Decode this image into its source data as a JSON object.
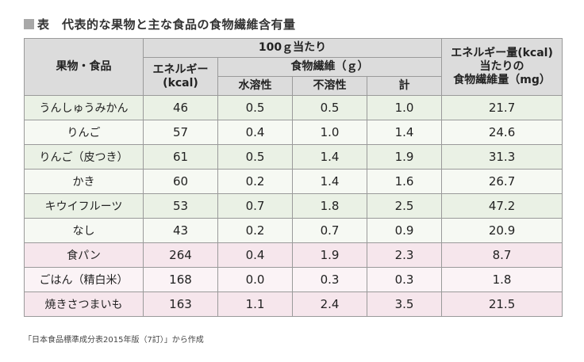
{
  "title": "■表　代表的な果物と主な食品の食物繊維含有量",
  "title_text": "表　代表的な果物と主な食品の食物繊維含有量",
  "headers": {
    "item": "果物・食品",
    "per100g": "100ｇ当たり",
    "energy_line1": "エネルギー",
    "energy_line2": "(kcal)",
    "fiber_group": "食物繊維（ｇ）",
    "soluble": "水溶性",
    "insoluble": "不溶性",
    "total": "計",
    "per_energy_line1": "エネルギー量(kcal)",
    "per_energy_line2": "当たりの",
    "per_energy_line3": "食物繊維量（mg）"
  },
  "rows": [
    {
      "name": "うんしゅうみかん",
      "energy": "46",
      "soluble": "0.5",
      "insoluble": "0.5",
      "total": "1.0",
      "per_energy": "21.7",
      "group": "fruit"
    },
    {
      "name": "りんご",
      "energy": "57",
      "soluble": "0.4",
      "insoluble": "1.0",
      "total": "1.4",
      "per_energy": "24.6",
      "group": "fruit"
    },
    {
      "name": "りんご（皮つき）",
      "energy": "61",
      "soluble": "0.5",
      "insoluble": "1.4",
      "total": "1.9",
      "per_energy": "31.3",
      "group": "fruit"
    },
    {
      "name": "かき",
      "energy": "60",
      "soluble": "0.2",
      "insoluble": "1.4",
      "total": "1.6",
      "per_energy": "26.7",
      "group": "fruit"
    },
    {
      "name": "キウイフルーツ",
      "energy": "53",
      "soluble": "0.7",
      "insoluble": "1.8",
      "total": "2.5",
      "per_energy": "47.2",
      "group": "fruit"
    },
    {
      "name": "なし",
      "energy": "43",
      "soluble": "0.2",
      "insoluble": "0.7",
      "total": "0.9",
      "per_energy": "20.9",
      "group": "fruit"
    },
    {
      "name": "食パン",
      "energy": "264",
      "soluble": "0.4",
      "insoluble": "1.9",
      "total": "2.3",
      "per_energy": "8.7",
      "group": "food"
    },
    {
      "name": "ごはん（精白米）",
      "energy": "168",
      "soluble": "0.0",
      "insoluble": "0.3",
      "total": "0.3",
      "per_energy": "1.8",
      "group": "food"
    },
    {
      "name": "焼きさつまいも",
      "energy": "163",
      "soluble": "1.1",
      "insoluble": "2.4",
      "total": "3.5",
      "per_energy": "21.5",
      "group": "food"
    }
  ],
  "colors": {
    "header_bg": "#dcdcdc",
    "fruit_bg": "#eaf1e5",
    "fruit_bg_alt": "#f6f9f3",
    "food_bg": "#f6e6ec",
    "food_bg_alt": "#fbf3f6",
    "border": "#9a9a9a"
  },
  "note": "「日本食品標準成分表2015年版（7訂）」から作成"
}
